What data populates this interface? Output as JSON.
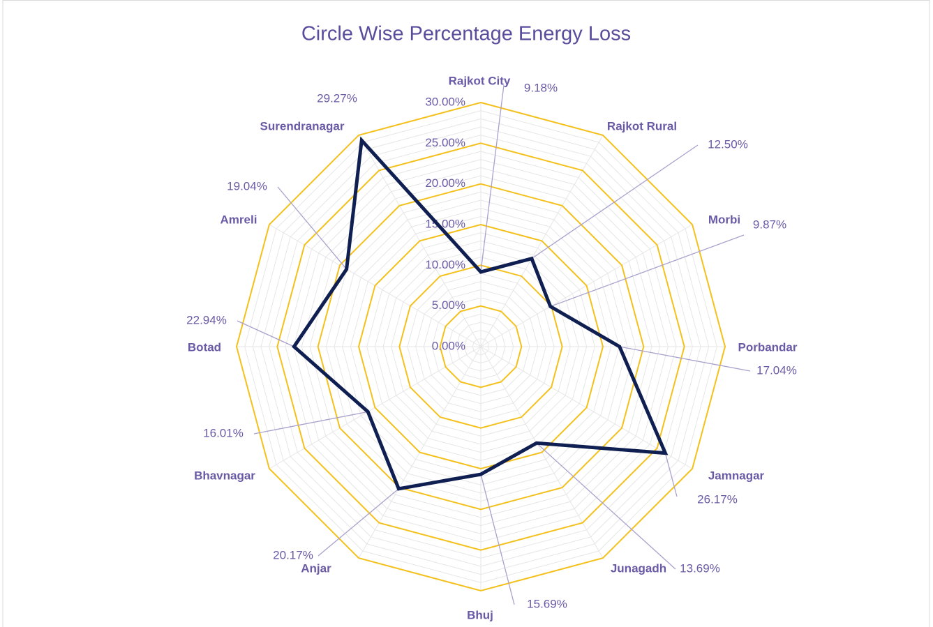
{
  "chart_data": {
    "type": "radar",
    "title": "Circle Wise Percentage Energy Loss",
    "categories": [
      "Rajkot City",
      "Rajkot Rural",
      "Morbi",
      "Porbandar",
      "Jamnagar",
      "Junagadh",
      "Bhuj",
      "Anjar",
      "Bhavnagar",
      "Botad",
      "Amreli",
      "Surendranagar"
    ],
    "series": [
      {
        "name": "Percentage Energy Loss",
        "color": "#0f1f52",
        "values": [
          9.18,
          12.5,
          9.87,
          17.04,
          26.17,
          13.69,
          15.69,
          20.17,
          16.01,
          22.94,
          19.04,
          29.27
        ],
        "value_labels": [
          "9.18%",
          "12.50%",
          "9.87%",
          "17.04%",
          "26.17%",
          "13.69%",
          "15.69%",
          "20.17%",
          "16.01%",
          "22.94%",
          "19.04%",
          "29.27%"
        ]
      }
    ],
    "ylim": [
      0,
      30
    ],
    "yticks": [
      {
        "value": 0,
        "label": "0.00%"
      },
      {
        "value": 5,
        "label": "5.00%"
      },
      {
        "value": 10,
        "label": "10.00%"
      },
      {
        "value": 15,
        "label": "15.00%"
      },
      {
        "value": 20,
        "label": "20.00%"
      },
      {
        "value": 25,
        "label": "25.00%"
      },
      {
        "value": 30,
        "label": "30.00%"
      }
    ],
    "minor_ticks": [
      1,
      2,
      3,
      4,
      6,
      7,
      8,
      9,
      11,
      12,
      13,
      14,
      16,
      17,
      18,
      19,
      21,
      22,
      23,
      24,
      26,
      27,
      28,
      29
    ],
    "grid_color": "#f4c01c",
    "minor_grid_color": "#e6e6e6"
  }
}
